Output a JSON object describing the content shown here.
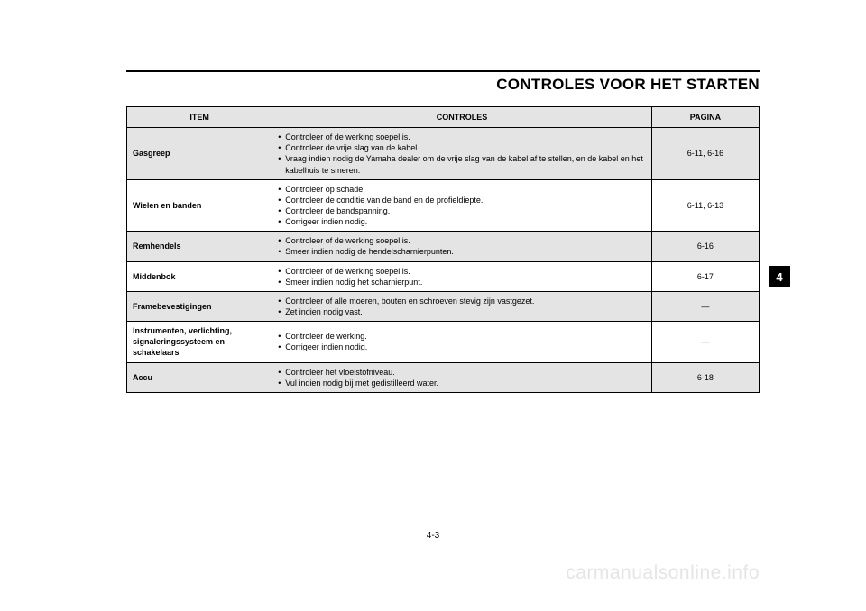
{
  "title": "CONTROLES VOOR HET STARTEN",
  "columns": {
    "item": "ITEM",
    "controls": "CONTROLES",
    "page": "PAGINA"
  },
  "rows": [
    {
      "shaded": true,
      "item": "Gasgreep",
      "controls": [
        "Controleer of de werking soepel is.",
        "Controleer de vrije slag van de kabel.",
        "Vraag indien nodig de Yamaha dealer om de vrije slag van de kabel af te stellen, en de kabel en het kabelhuis te smeren."
      ],
      "page": "6-11, 6-16"
    },
    {
      "shaded": false,
      "item": "Wielen en banden",
      "controls": [
        "Controleer op schade.",
        "Controleer de conditie van de band en de profieldiepte.",
        "Controleer de bandspanning.",
        "Corrigeer indien nodig."
      ],
      "page": "6-11, 6-13"
    },
    {
      "shaded": true,
      "item": "Remhendels",
      "controls": [
        "Controleer of de werking soepel is.",
        "Smeer indien nodig de hendelscharnierpunten."
      ],
      "page": "6-16"
    },
    {
      "shaded": false,
      "item": "Middenbok",
      "controls": [
        "Controleer of de werking soepel is.",
        "Smeer indien nodig het scharnierpunt."
      ],
      "page": "6-17"
    },
    {
      "shaded": true,
      "item": "Framebevestigingen",
      "controls": [
        "Controleer of alle moeren, bouten en schroeven stevig zijn vastgezet.",
        "Zet indien nodig vast."
      ],
      "page": "—"
    },
    {
      "shaded": false,
      "item": "Instrumenten, verlichting, signaleringssysteem en schakelaars",
      "controls": [
        "Controleer de werking.",
        "Corrigeer indien nodig."
      ],
      "page": "—"
    },
    {
      "shaded": true,
      "item": "Accu",
      "controls": [
        "Controleer het vloeistofniveau.",
        "Vul indien nodig bij met gedistilleerd water."
      ],
      "page": "6-18"
    }
  ],
  "sidetab": "4",
  "pagenum": "4-3",
  "watermark": "carmanualsonline.info",
  "style": {
    "page_bg": "#ffffff",
    "text_color": "#000000",
    "shade_bg": "#e4e4e4",
    "border_color": "#000000",
    "title_fontsize": 17,
    "table_fontsize": 9,
    "watermark_color": "#e5e5e5",
    "sidetab_bg": "#000000",
    "sidetab_fg": "#ffffff"
  }
}
